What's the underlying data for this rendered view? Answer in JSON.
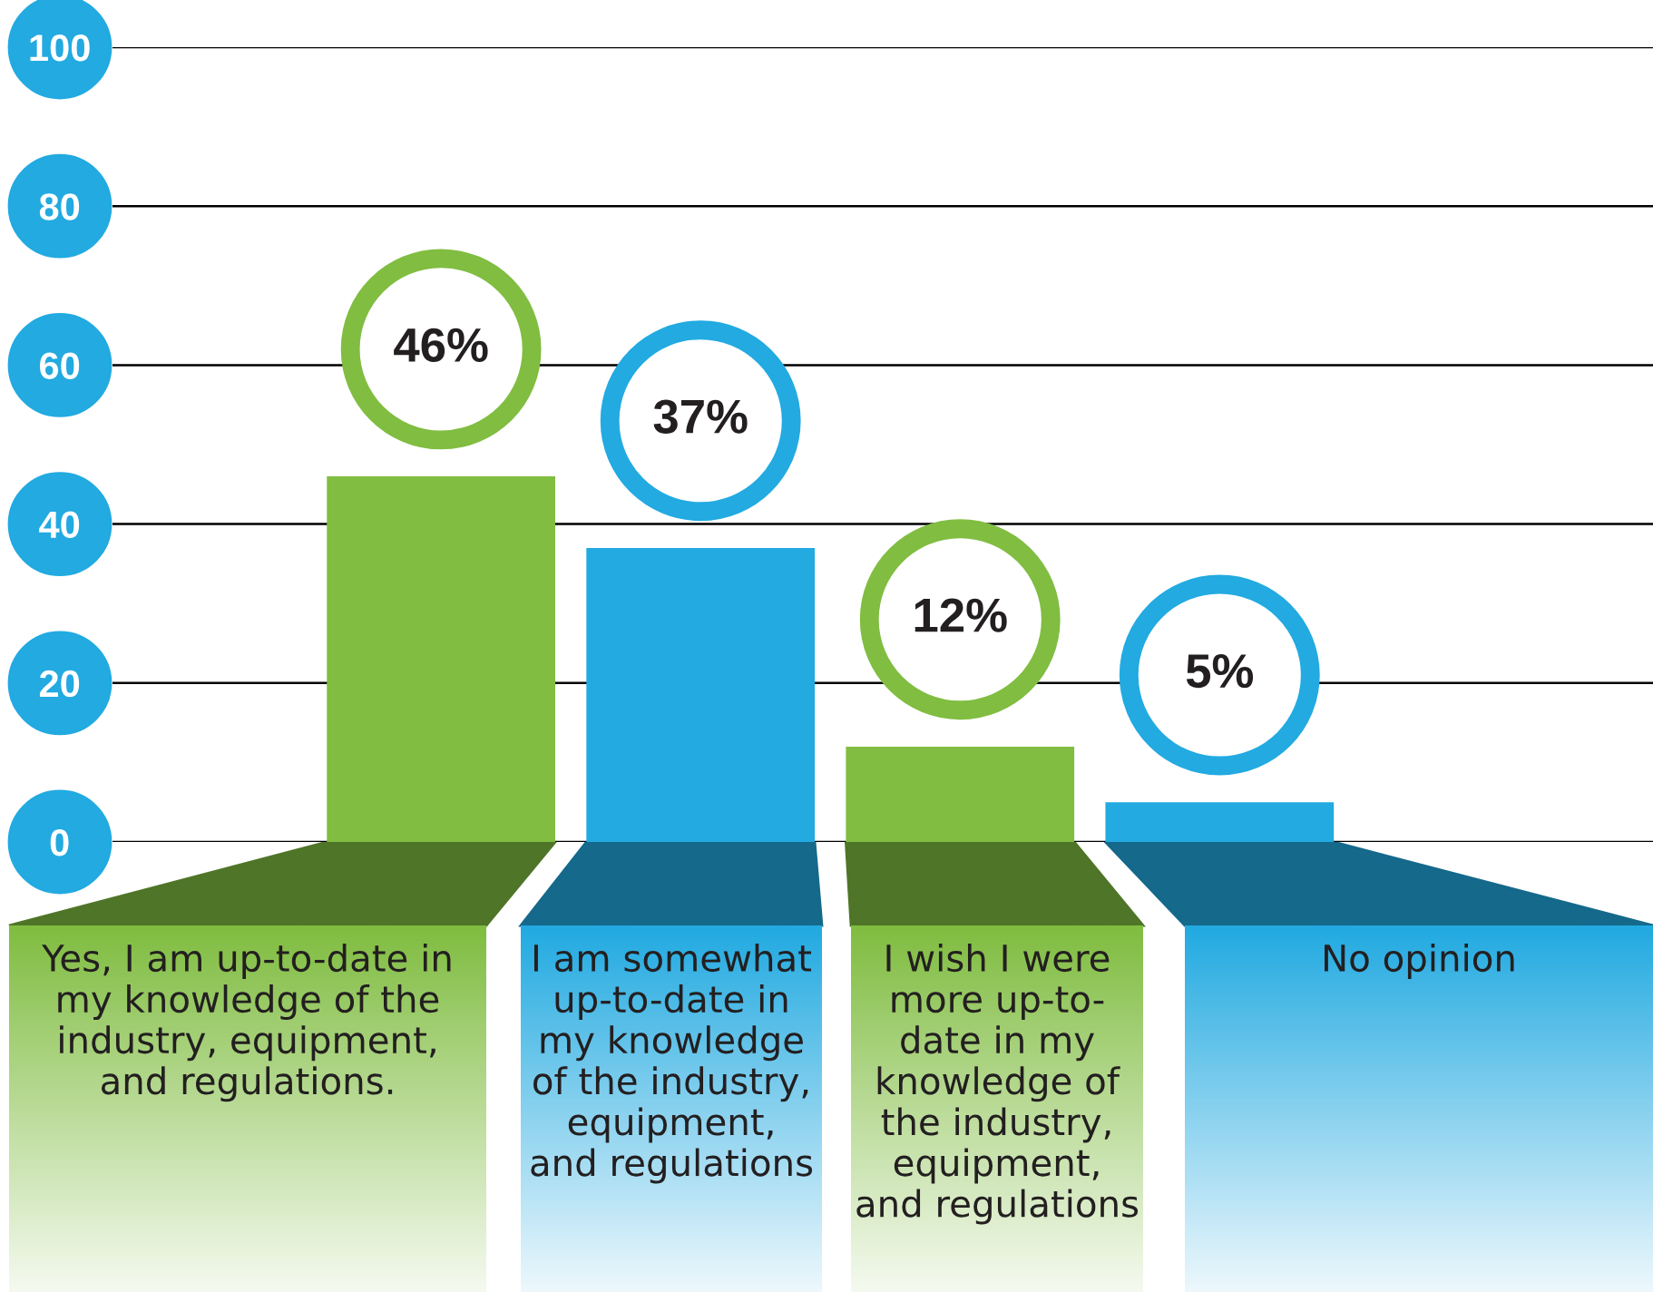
{
  "chart_data": {
    "type": "bar",
    "categories": [
      "Yes, I am up-to-date in\nmy knowledge of the\nindustry, equipment,\nand regulations.",
      "I am somewhat\nup-to-date in\nmy knowledge\nof the industry,\nequipment,\nand regulations",
      "I wish I were\nmore up-to-\ndate in my\nknowledge of\nthe industry,\nequipment,\nand regulations",
      "No opinion"
    ],
    "values": [
      46,
      37,
      12,
      5
    ],
    "colors": [
      "#80bd41",
      "#22aae1",
      "#80bd41",
      "#22aae1"
    ],
    "value_labels": [
      "46%",
      "37%",
      "12%",
      "5%"
    ],
    "ylim": [
      0,
      100
    ],
    "yticks": [
      0,
      20,
      40,
      60,
      80,
      100
    ],
    "grid": "y"
  }
}
